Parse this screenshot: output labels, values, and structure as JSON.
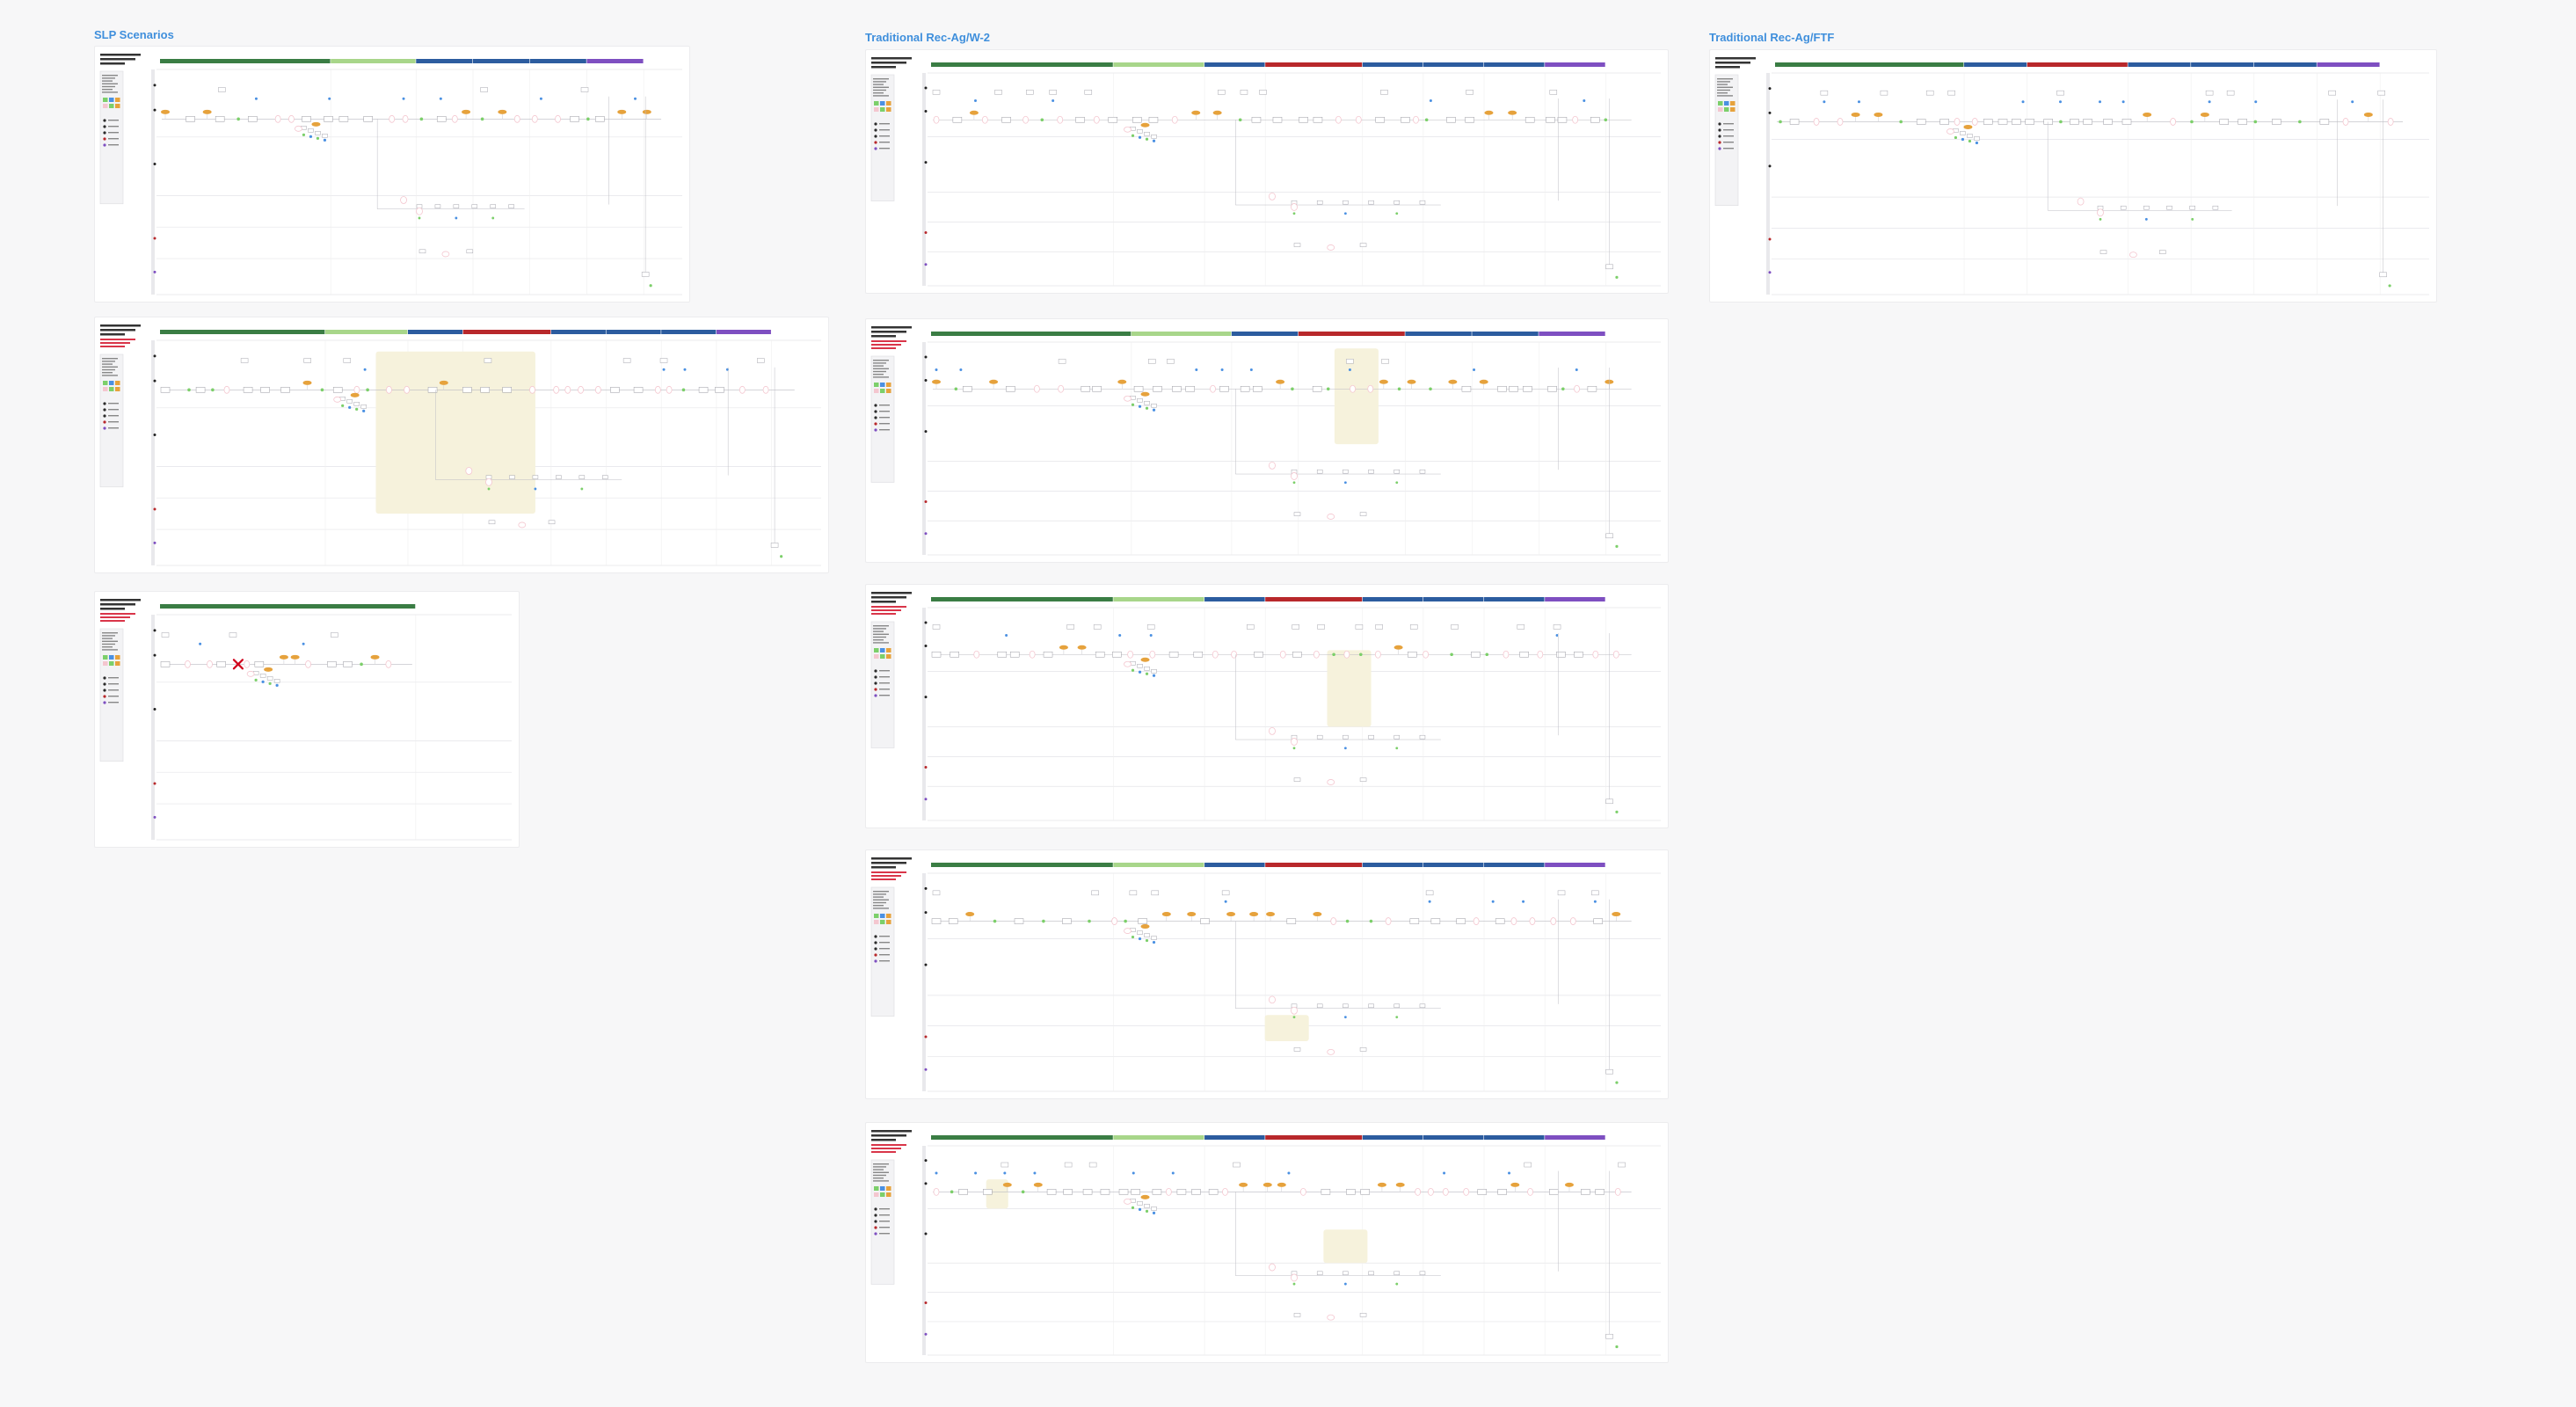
{
  "page": {
    "background": "#f7f7f8"
  },
  "sections": [
    {
      "id": "slp",
      "title": "SLP Scenarios"
    },
    {
      "id": "w2",
      "title": "Traditional Rec-Ag/W-2"
    },
    {
      "id": "ftf",
      "title": "Traditional Rec-Ag/FTF"
    }
  ],
  "colors": {
    "title": "#3f8fdc",
    "phase_dark_green": "#3a7d44",
    "phase_light_green": "#a8d68a",
    "phase_blue": "#2c5c9f",
    "phase_red": "#b8282b",
    "phase_purple": "#7e4fc1",
    "node_orange": "#e6a23c",
    "node_pink": "#f4c6cf",
    "node_green": "#7ccf6a",
    "node_blue": "#4a90e2",
    "highlight_yellow": "#f6f2dc",
    "error_red": "#d0021b"
  },
  "cards": [
    {
      "id": "slp-1",
      "section": "slp",
      "phases": [
        "dg",
        "lg",
        "bl",
        "bl",
        "bl",
        "pu"
      ],
      "highlight": null,
      "error": false,
      "note": false
    },
    {
      "id": "slp-2",
      "section": "slp",
      "phases": [
        "dg",
        "lg",
        "bl",
        "rd",
        "bl",
        "bl",
        "bl",
        "pu"
      ],
      "highlight": "mid",
      "error": false,
      "note": true
    },
    {
      "id": "slp-3",
      "section": "slp",
      "phases": [
        "dg"
      ],
      "highlight": null,
      "error": true,
      "note": true
    },
    {
      "id": "w2-1",
      "section": "w2",
      "phases": [
        "dg",
        "lg",
        "bl",
        "rd",
        "bl",
        "bl",
        "bl",
        "pu"
      ],
      "highlight": null,
      "error": false,
      "note": false
    },
    {
      "id": "w2-2",
      "section": "w2",
      "phases": [
        "dg",
        "lg",
        "bl",
        "rd",
        "bl",
        "bl",
        "pu"
      ],
      "highlight": "right",
      "error": false,
      "note": true
    },
    {
      "id": "w2-3",
      "section": "w2",
      "phases": [
        "dg",
        "lg",
        "bl",
        "rd",
        "bl",
        "bl",
        "bl",
        "pu"
      ],
      "highlight": "right-low",
      "error": false,
      "note": true
    },
    {
      "id": "w2-4",
      "section": "w2",
      "phases": [
        "dg",
        "lg",
        "bl",
        "rd",
        "bl",
        "bl",
        "bl",
        "pu"
      ],
      "highlight": "bottom",
      "error": false,
      "note": true
    },
    {
      "id": "w2-5",
      "section": "w2",
      "phases": [
        "dg",
        "lg",
        "bl",
        "rd",
        "bl",
        "bl",
        "bl",
        "pu"
      ],
      "highlight": "left-and-right",
      "error": false,
      "note": true
    },
    {
      "id": "ftf-1",
      "section": "ftf",
      "phases": [
        "dg",
        "bl",
        "rd",
        "bl",
        "bl",
        "bl",
        "pu"
      ],
      "highlight": null,
      "error": false,
      "note": false
    }
  ]
}
